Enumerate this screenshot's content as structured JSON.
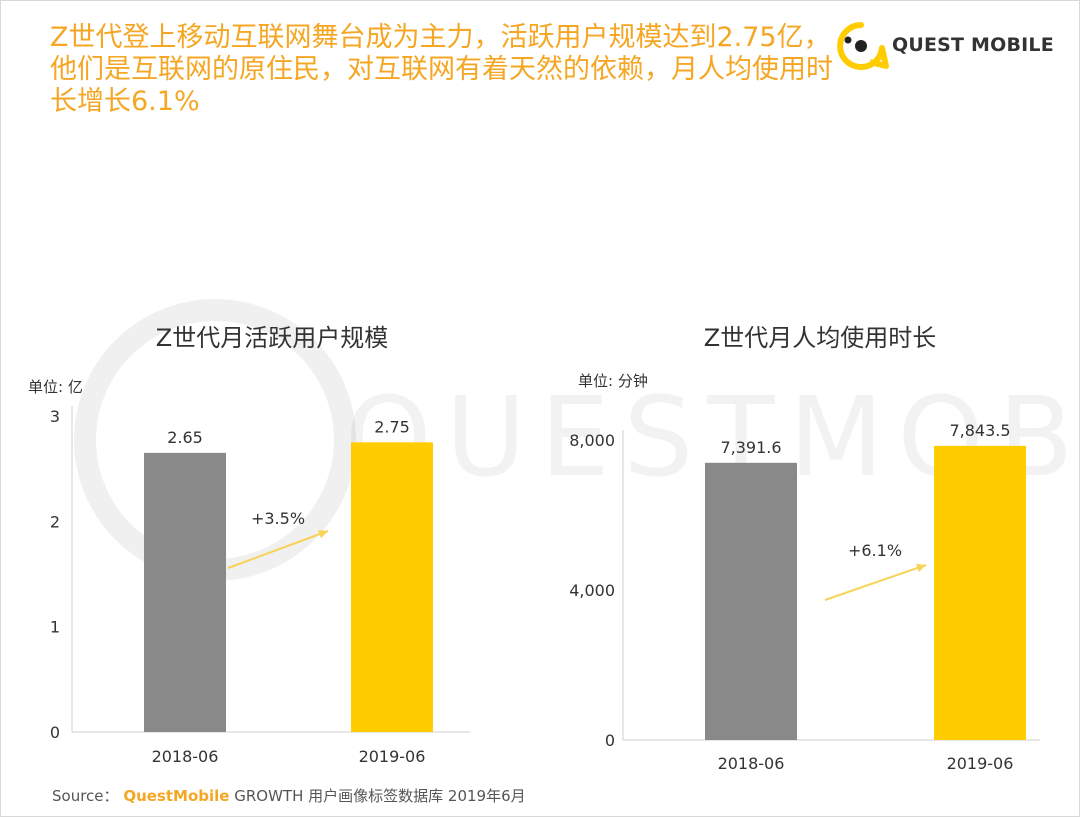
{
  "headline": "Z世代登上移动互联网舞台成为主力，活跃用户规模达到2.75亿，他们是互联网的原住民，对互联网有着天然的依赖，月人均使用时长增长6.1%",
  "logo": {
    "text": "QUEST MOBILE"
  },
  "watermark": "QUESTMOBILE",
  "source": {
    "label": "Source：",
    "brand": "QuestMobile",
    "text": "GROWTH 用户画像标签数据库 2019年6月"
  },
  "colors": {
    "accent": "#f5a623",
    "gray_bar": "#898989",
    "yellow_bar": "#ffcc00",
    "arrow": "#f7d358"
  },
  "chart_data": [
    {
      "type": "bar",
      "title": "Z世代月活跃用户规模",
      "unit_label": "单位: 亿",
      "categories": [
        "2018-06",
        "2019-06"
      ],
      "values": [
        2.65,
        2.75
      ],
      "value_labels": [
        "2.65",
        "2.75"
      ],
      "bar_colors": [
        "#898989",
        "#ffcc00"
      ],
      "ylim": [
        0,
        3
      ],
      "yticks": [
        "0",
        "1",
        "2",
        "3"
      ],
      "ytick_values": [
        0,
        1,
        2,
        3
      ],
      "growth_label": "+3.5%"
    },
    {
      "type": "bar",
      "title": "Z世代月人均使用时长",
      "unit_label": "单位: 分钟",
      "categories": [
        "2018-06",
        "2019-06"
      ],
      "values": [
        7391.6,
        7843.5
      ],
      "value_labels": [
        "7,391.6",
        "7,843.5"
      ],
      "bar_colors": [
        "#898989",
        "#ffcc00"
      ],
      "ylim": [
        0,
        8000
      ],
      "yticks": [
        "0",
        "4,000",
        "8,000"
      ],
      "ytick_values": [
        0,
        4000,
        8000
      ],
      "growth_label": "+6.1%"
    }
  ]
}
